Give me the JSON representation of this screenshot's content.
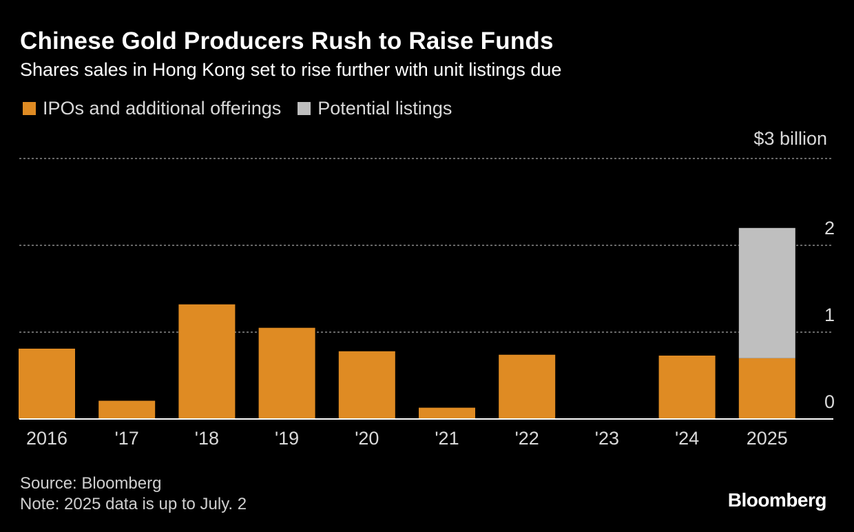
{
  "chart_data": {
    "type": "bar",
    "stacked": true,
    "title": "Chinese Gold Producers Rush to Raise Funds",
    "subtitle": "Shares sales in Hong Kong set to rise further with unit listings due",
    "unit_label": "$3 billion",
    "categories": [
      "2016",
      "'17",
      "'18",
      "'19",
      "'20",
      "'21",
      "'22",
      "'23",
      "'24",
      "2025"
    ],
    "series": [
      {
        "name": "IPOs and additional offerings",
        "color": "#df8b23",
        "values": [
          0.81,
          0.21,
          1.32,
          1.05,
          0.78,
          0.13,
          0.74,
          0,
          0.73,
          0.7
        ]
      },
      {
        "name": "Potential listings",
        "color": "#bfbfbf",
        "values": [
          0,
          0,
          0,
          0,
          0,
          0,
          0,
          0,
          0,
          1.5
        ]
      }
    ],
    "yticks": [
      "0",
      "1",
      "2"
    ],
    "ylim": [
      0,
      3
    ],
    "grid": true,
    "legend_position": "top-left"
  },
  "footer": {
    "source": "Source: Bloomberg",
    "note": "Note: 2025 data is up to July. 2"
  },
  "brand": "Bloomberg"
}
